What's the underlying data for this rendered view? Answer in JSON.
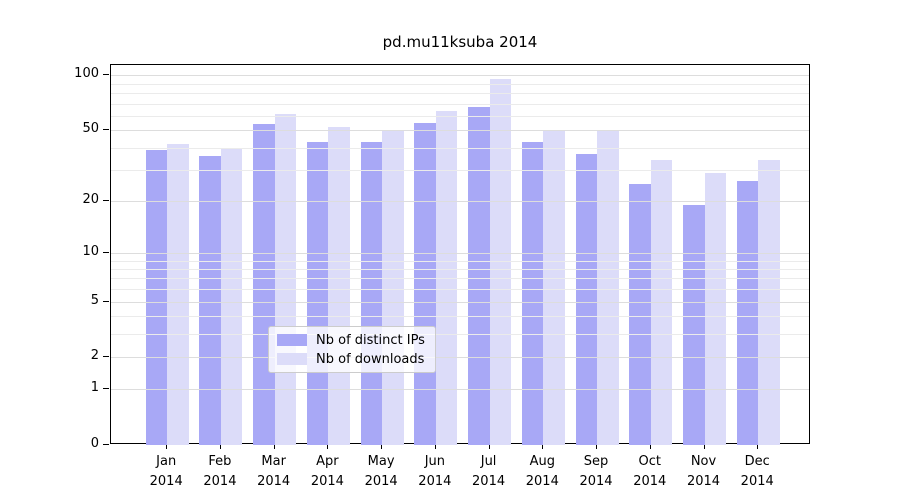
{
  "title": "pd.mu11ksuba 2014",
  "colors": {
    "ips_bar": "#a8a8f6",
    "downloads_bar": "#dcdcf9",
    "grid_minor": "#ebebeb",
    "grid_major": "#dddddd",
    "axis": "#000000"
  },
  "legend": {
    "items": [
      {
        "key": "ips",
        "label": "Nb of distinct IPs"
      },
      {
        "key": "downloads",
        "label": "Nb of downloads"
      }
    ]
  },
  "y_axis": {
    "scale": "log10(1+value)",
    "ticks": [
      {
        "label": "100",
        "value": 100
      },
      {
        "label": "50",
        "value": 50
      },
      {
        "label": "20",
        "value": 20
      },
      {
        "label": "10",
        "value": 10
      },
      {
        "label": "5",
        "value": 5
      },
      {
        "label": "2",
        "value": 2
      },
      {
        "label": "1",
        "value": 1
      },
      {
        "label": "0",
        "value": 0
      }
    ],
    "minor_grid_values": [
      3,
      4,
      6,
      7,
      8,
      9,
      30,
      40,
      60,
      70,
      80,
      90
    ]
  },
  "x_axis": {
    "months": [
      {
        "name": "Jan",
        "year": "2014"
      },
      {
        "name": "Feb",
        "year": "2014"
      },
      {
        "name": "Mar",
        "year": "2014"
      },
      {
        "name": "Apr",
        "year": "2014"
      },
      {
        "name": "May",
        "year": "2014"
      },
      {
        "name": "Jun",
        "year": "2014"
      },
      {
        "name": "Jul",
        "year": "2014"
      },
      {
        "name": "Aug",
        "year": "2014"
      },
      {
        "name": "Sep",
        "year": "2014"
      },
      {
        "name": "Oct",
        "year": "2014"
      },
      {
        "name": "Nov",
        "year": "2014"
      },
      {
        "name": "Dec",
        "year": "2014"
      }
    ]
  },
  "chart_data": {
    "type": "bar",
    "title": "pd.mu11ksuba 2014",
    "categories": [
      "Jan 2014",
      "Feb 2014",
      "Mar 2014",
      "Apr 2014",
      "May 2014",
      "Jun 2014",
      "Jul 2014",
      "Aug 2014",
      "Sep 2014",
      "Oct 2014",
      "Nov 2014",
      "Dec 2014"
    ],
    "series": [
      {
        "name": "Nb of distinct IPs",
        "color": "#a8a8f6",
        "values": [
          39,
          36,
          54,
          43,
          43,
          55,
          67,
          43,
          37,
          25,
          19,
          26
        ]
      },
      {
        "name": "Nb of downloads",
        "color": "#dcdcf9",
        "values": [
          42,
          40,
          61,
          52,
          50,
          64,
          95,
          50,
          50,
          34,
          29,
          34
        ]
      }
    ],
    "xlabel": "",
    "ylabel": "",
    "ylim": [
      0,
      114
    ],
    "yscale": "log1p",
    "ytick_values": [
      0,
      1,
      2,
      5,
      10,
      20,
      50,
      100
    ],
    "grid": true,
    "grid_drawn_above_bars": true,
    "legend_position": "inside-bottom-center"
  }
}
